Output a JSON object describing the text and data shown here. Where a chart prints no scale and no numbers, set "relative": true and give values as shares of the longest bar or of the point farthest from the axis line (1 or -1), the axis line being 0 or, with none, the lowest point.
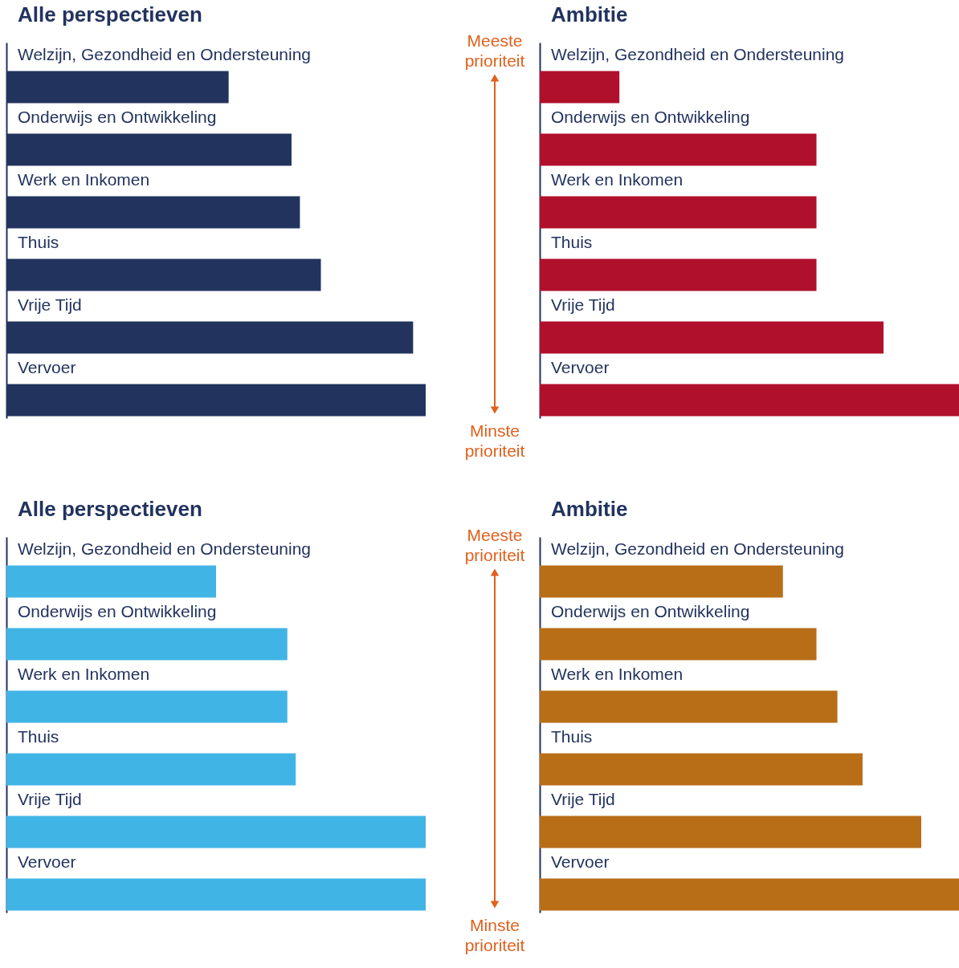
{
  "chart_data": [
    {
      "type": "bar",
      "orientation": "horizontal",
      "relative": true,
      "title": "Alle perspectieven",
      "categories": [
        "Welzijn, Gezondheid en Ondersteuning",
        "Onderwijs en Ontwikkeling",
        "Werk en Inkomen",
        "Thuis",
        "Vrije Tijd",
        "Vervoer"
      ],
      "series": [
        {
          "color": "#22335e",
          "values": [
            0.53,
            0.68,
            0.7,
            0.75,
            0.97,
            1.0
          ]
        }
      ],
      "annotations": [
        "Meeste prioriteit",
        "Minste prioriteit"
      ]
    },
    {
      "type": "bar",
      "orientation": "horizontal",
      "relative": true,
      "title": "Ambitie",
      "categories": [
        "Welzijn, Gezondheid en Ondersteuning",
        "Onderwijs en Ontwikkeling",
        "Werk en Inkomen",
        "Thuis",
        "Vrije Tijd",
        "Vervoer"
      ],
      "series": [
        {
          "color": "#b0102c",
          "values": [
            0.19,
            0.66,
            0.66,
            0.66,
            0.82,
            1.0
          ]
        }
      ]
    },
    {
      "type": "bar",
      "orientation": "horizontal",
      "relative": true,
      "title": "Alle perspectieven",
      "categories": [
        "Welzijn, Gezondheid en Ondersteuning",
        "Onderwijs en Ontwikkeling",
        "Werk en Inkomen",
        "Thuis",
        "Vrije Tijd",
        "Vervoer"
      ],
      "series": [
        {
          "color": "#41b4e6",
          "values": [
            0.5,
            0.67,
            0.67,
            0.69,
            1.0,
            1.0
          ]
        }
      ],
      "annotations": [
        "Meeste prioriteit",
        "Minste prioriteit"
      ]
    },
    {
      "type": "bar",
      "orientation": "horizontal",
      "relative": true,
      "title": "Ambitie",
      "categories": [
        "Welzijn, Gezondheid en Ondersteuning",
        "Onderwijs en Ontwikkeling",
        "Werk en Inkomen",
        "Thuis",
        "Vrije Tijd",
        "Vervoer"
      ],
      "series": [
        {
          "color": "#b86e17",
          "values": [
            0.58,
            0.66,
            0.71,
            0.77,
            0.91,
            1.0
          ]
        }
      ]
    }
  ]
}
